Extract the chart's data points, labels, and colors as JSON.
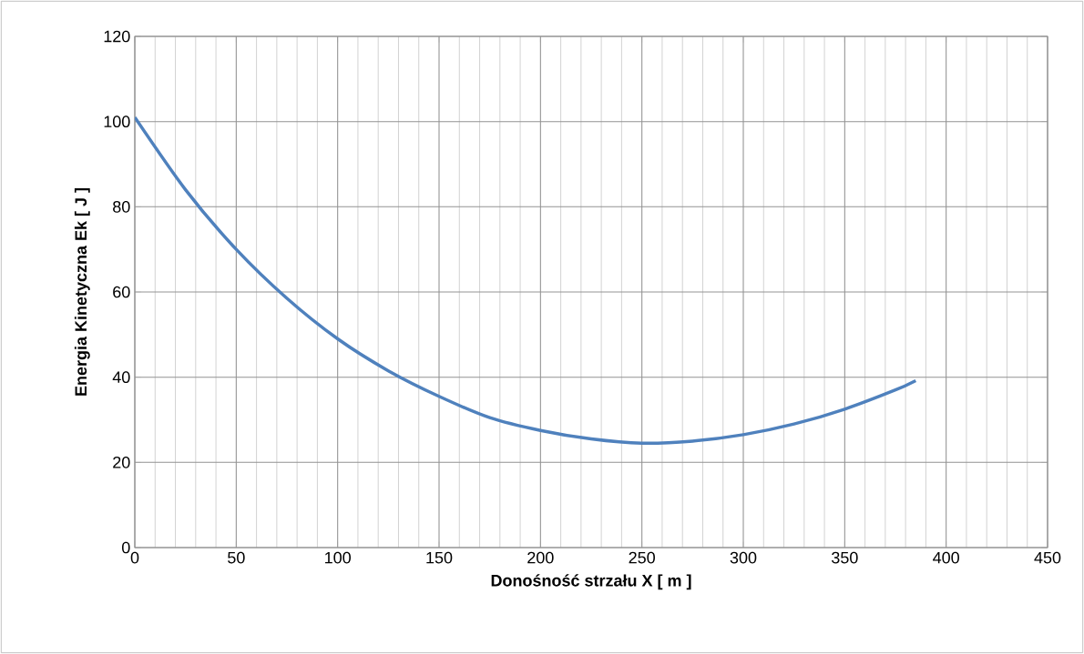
{
  "chart_data": {
    "type": "line",
    "xlabel": "Donośność  strzału   X  [ m ]",
    "ylabel": "Energia  Kinetyczna  Ek   [ J ]",
    "x": [
      0,
      25,
      50,
      75,
      100,
      125,
      150,
      175,
      200,
      225,
      250,
      275,
      300,
      325,
      350,
      375,
      385
    ],
    "series": [
      {
        "color": "#4f81bd",
        "values": [
          101,
          84,
          70,
          58.5,
          49,
          41.5,
          35.5,
          30.5,
          27.5,
          25.5,
          24.5,
          25,
          26.5,
          29,
          32.5,
          37,
          39.2
        ]
      }
    ],
    "xlim": [
      0,
      450
    ],
    "xticks": [
      0,
      50,
      100,
      150,
      200,
      250,
      300,
      350,
      400,
      450
    ],
    "ylim": [
      0,
      120
    ],
    "yticks": [
      0,
      20,
      40,
      60,
      80,
      100,
      120
    ],
    "grid": true,
    "marker": "none",
    "line_style": "solid"
  }
}
